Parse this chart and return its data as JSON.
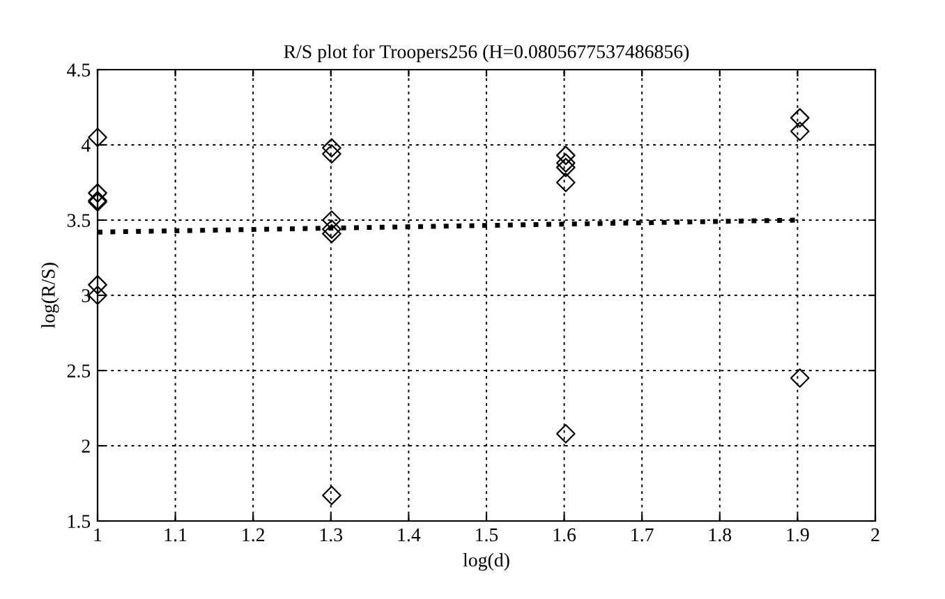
{
  "chart_data": {
    "type": "scatter",
    "title": "R/S plot for Troopers256 (H=0.0805677537486856)",
    "xlabel": "log(d)",
    "ylabel": "log(R/S)",
    "xlim": [
      1,
      2
    ],
    "xticks": [
      1,
      1.1,
      1.2,
      1.3,
      1.4,
      1.5,
      1.6,
      1.7,
      1.8,
      1.9,
      2
    ],
    "ylim": [
      1.5,
      4.5
    ],
    "yticks": [
      1.5,
      2,
      2.5,
      3,
      3.5,
      4,
      4.5
    ],
    "grid": true,
    "series": [
      {
        "color": "#000000",
        "marker": "diamond",
        "x": [
          1,
          1,
          1,
          1,
          1,
          1,
          1.301,
          1.301,
          1.301,
          1.301,
          1.301,
          1.301,
          1.602,
          1.602,
          1.602,
          1.602,
          1.602,
          1.903,
          1.903,
          1.903
        ],
        "values": [
          4.05,
          3.68,
          3.63,
          3.62,
          3.07,
          3.0,
          3.98,
          3.94,
          3.5,
          3.44,
          3.41,
          1.67,
          3.93,
          3.88,
          3.85,
          3.75,
          2.08,
          4.18,
          4.09,
          2.45
        ]
      },
      {
        "type": "line",
        "color": "#000000",
        "line_style": "dotted",
        "x": [
          1,
          1.9
        ],
        "values": [
          3.42,
          3.5
        ]
      }
    ]
  }
}
